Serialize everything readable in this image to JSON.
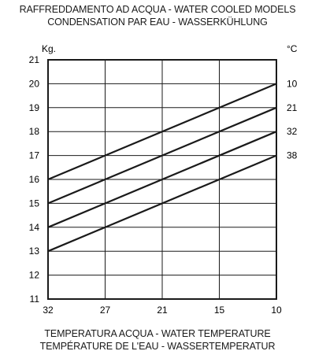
{
  "chart_data": {
    "type": "line",
    "title": [
      "RAFFREDDAMENTO AD ACQUA - WATER COOLED MODELS",
      "CONDENSATION PAR EAU - WASSERKÜHLUNG"
    ],
    "xlabel": [
      "TEMPERATURA ACQUA - WATER TEMPERATURE",
      "TEMPÉRATURE DE L'EAU - WASSERTEMPERATUR"
    ],
    "ylabel": "Kg.",
    "series_unit": "°C",
    "x_ticks": [
      "32",
      "27",
      "21",
      "15",
      "10"
    ],
    "x": [
      32,
      27,
      21,
      15,
      10
    ],
    "ylim": [
      11,
      21
    ],
    "y_ticks": [
      "21",
      "20",
      "19",
      "18",
      "17",
      "16",
      "15",
      "14",
      "13",
      "12",
      "11"
    ],
    "grid": true,
    "series": [
      {
        "name": "10",
        "x": [
          32,
          10
        ],
        "values": [
          16,
          20
        ]
      },
      {
        "name": "21",
        "x": [
          32,
          10
        ],
        "values": [
          15,
          19
        ]
      },
      {
        "name": "32",
        "x": [
          32,
          10
        ],
        "values": [
          14,
          18
        ]
      },
      {
        "name": "38",
        "x": [
          32,
          10
        ],
        "values": [
          13,
          17
        ]
      }
    ],
    "colors": {
      "line": "#1a1a1a",
      "grid": "#1a1a1a",
      "background": "#ffffff"
    }
  }
}
